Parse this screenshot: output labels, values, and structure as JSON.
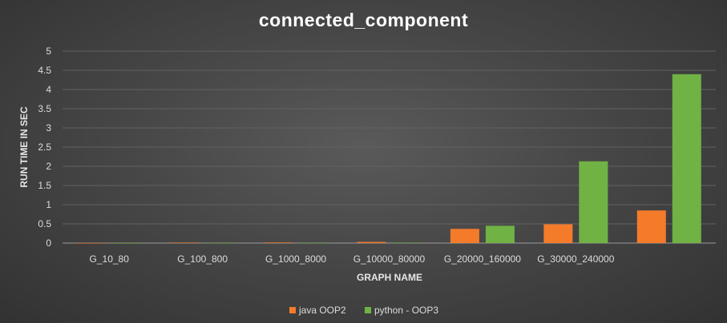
{
  "chart_data": {
    "type": "bar",
    "title": "connected_component",
    "xlabel": "GRAPH NAME",
    "ylabel": "RUN TIME IN SEC",
    "ylim": [
      0,
      5
    ],
    "yticks": [
      "0",
      "0.5",
      "1",
      "1.5",
      "2",
      "2.5",
      "3",
      "3.5",
      "4",
      "4.5",
      "5"
    ],
    "categories": [
      "G_10_80",
      "G_100_800",
      "G_1000_8000",
      "G_10000_80000",
      "G_20000_160000",
      "G_30000_240000",
      ""
    ],
    "series": [
      {
        "name": "java OOP2",
        "color": "#f47b2a",
        "values": [
          0.003,
          0.012,
          0.015,
          0.03,
          0.37,
          0.49,
          0.85
        ]
      },
      {
        "name": "python - OOP3",
        "color": "#70b244",
        "values": [
          0.001,
          0.002,
          0.004,
          0.012,
          0.45,
          2.13,
          4.4
        ]
      }
    ],
    "grid": true,
    "legend_position": "bottom"
  }
}
